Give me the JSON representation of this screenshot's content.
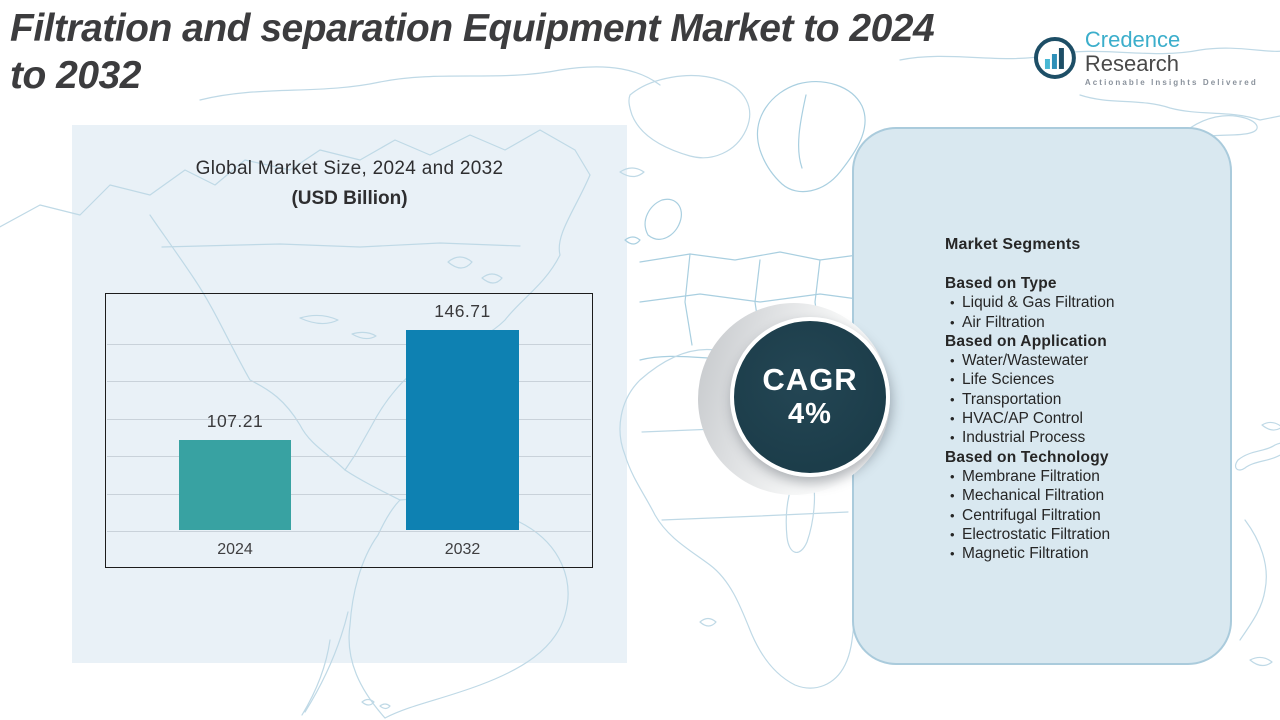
{
  "page_title": {
    "line1": "Filtration and separation Equipment Market to 2024",
    "line2": "to 2032"
  },
  "logo": {
    "brand_primary": "Credence",
    "brand_secondary": "Research",
    "tagline": "Actionable Insights Delivered",
    "icon": "bar-chart-circle"
  },
  "chart_data": {
    "type": "bar",
    "title": "Global Market Size, 2024 and 2032",
    "subtitle": "(USD Billion)",
    "categories": [
      "2024",
      "2032"
    ],
    "values": [
      107.21,
      146.71
    ],
    "bar_colors": [
      "#38A2A2",
      "#0E81B2"
    ],
    "ylim": [
      75,
      160
    ],
    "grid": true,
    "legend": false,
    "xlabel": "",
    "ylabel": ""
  },
  "cagr_badge": {
    "label": "CAGR",
    "value": "4%"
  },
  "segments": {
    "heading": "Market Segments",
    "bullet": "•",
    "groups": [
      {
        "title": "Based on Type",
        "items": [
          "Liquid & Gas Filtration",
          "Air Filtration"
        ]
      },
      {
        "title": "Based on Application",
        "items": [
          "Water/Wastewater",
          "Life Sciences",
          "Transportation",
          "HVAC/AP Control",
          "Industrial Process"
        ]
      },
      {
        "title": "Based on Technology",
        "items": [
          "Membrane Filtration",
          "Mechanical Filtration",
          "Centrifugal Filtration",
          "Electrostatic Filtration",
          "Magnetic Filtration"
        ]
      }
    ]
  },
  "colors": {
    "left_panel": "#E9F1F7",
    "right_panel": "#D9E8F0",
    "right_panel_border": "#AACBDC",
    "cagr_circle": "#1C3D4A",
    "map_line": "#BFD9E6",
    "title_text": "#3C3C3E",
    "brand_teal": "#3BAECB",
    "bar_2024": "#38A2A2",
    "bar_2032": "#0E81B2"
  }
}
